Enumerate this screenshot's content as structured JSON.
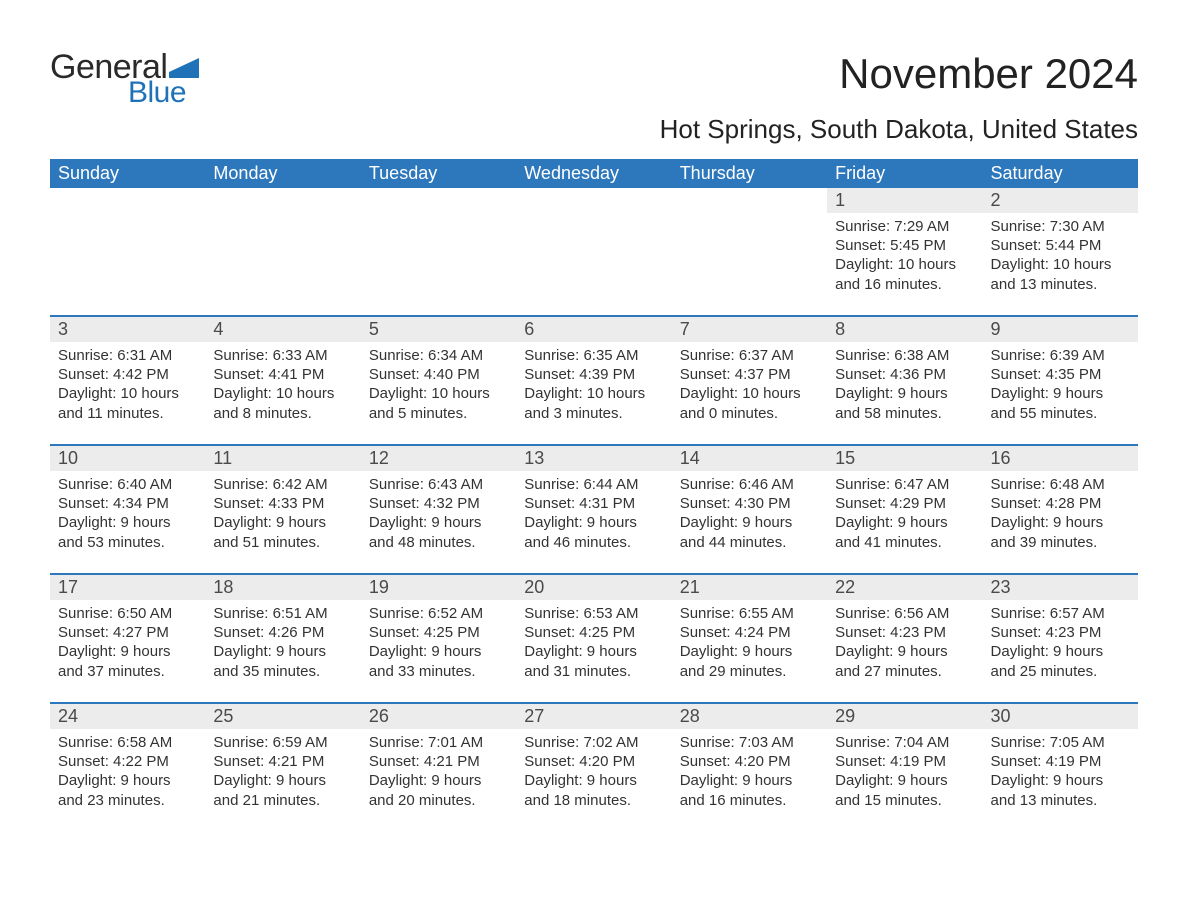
{
  "logo": {
    "text_general": "General",
    "text_blue": "Blue",
    "flag_color": "#1f72b8"
  },
  "title": "November 2024",
  "location": "Hot Springs, South Dakota, United States",
  "colors": {
    "header_bg": "#2d78bd",
    "header_text": "#ffffff",
    "daynum_bg": "#ececec",
    "daynum_text": "#4a4a4a",
    "body_text": "#333333",
    "rule": "#2d78bd",
    "page_bg": "#ffffff"
  },
  "font": {
    "family": "Arial",
    "title_size": 42,
    "location_size": 26,
    "header_size": 18,
    "daynum_size": 18,
    "body_size": 15
  },
  "calendar": {
    "type": "table",
    "columns": [
      "Sunday",
      "Monday",
      "Tuesday",
      "Wednesday",
      "Thursday",
      "Friday",
      "Saturday"
    ],
    "weeks": [
      [
        null,
        null,
        null,
        null,
        null,
        {
          "day": "1",
          "sunrise": "7:29 AM",
          "sunset": "5:45 PM",
          "daylight": "10 hours and 16 minutes."
        },
        {
          "day": "2",
          "sunrise": "7:30 AM",
          "sunset": "5:44 PM",
          "daylight": "10 hours and 13 minutes."
        }
      ],
      [
        {
          "day": "3",
          "sunrise": "6:31 AM",
          "sunset": "4:42 PM",
          "daylight": "10 hours and 11 minutes."
        },
        {
          "day": "4",
          "sunrise": "6:33 AM",
          "sunset": "4:41 PM",
          "daylight": "10 hours and 8 minutes."
        },
        {
          "day": "5",
          "sunrise": "6:34 AM",
          "sunset": "4:40 PM",
          "daylight": "10 hours and 5 minutes."
        },
        {
          "day": "6",
          "sunrise": "6:35 AM",
          "sunset": "4:39 PM",
          "daylight": "10 hours and 3 minutes."
        },
        {
          "day": "7",
          "sunrise": "6:37 AM",
          "sunset": "4:37 PM",
          "daylight": "10 hours and 0 minutes."
        },
        {
          "day": "8",
          "sunrise": "6:38 AM",
          "sunset": "4:36 PM",
          "daylight": "9 hours and 58 minutes."
        },
        {
          "day": "9",
          "sunrise": "6:39 AM",
          "sunset": "4:35 PM",
          "daylight": "9 hours and 55 minutes."
        }
      ],
      [
        {
          "day": "10",
          "sunrise": "6:40 AM",
          "sunset": "4:34 PM",
          "daylight": "9 hours and 53 minutes."
        },
        {
          "day": "11",
          "sunrise": "6:42 AM",
          "sunset": "4:33 PM",
          "daylight": "9 hours and 51 minutes."
        },
        {
          "day": "12",
          "sunrise": "6:43 AM",
          "sunset": "4:32 PM",
          "daylight": "9 hours and 48 minutes."
        },
        {
          "day": "13",
          "sunrise": "6:44 AM",
          "sunset": "4:31 PM",
          "daylight": "9 hours and 46 minutes."
        },
        {
          "day": "14",
          "sunrise": "6:46 AM",
          "sunset": "4:30 PM",
          "daylight": "9 hours and 44 minutes."
        },
        {
          "day": "15",
          "sunrise": "6:47 AM",
          "sunset": "4:29 PM",
          "daylight": "9 hours and 41 minutes."
        },
        {
          "day": "16",
          "sunrise": "6:48 AM",
          "sunset": "4:28 PM",
          "daylight": "9 hours and 39 minutes."
        }
      ],
      [
        {
          "day": "17",
          "sunrise": "6:50 AM",
          "sunset": "4:27 PM",
          "daylight": "9 hours and 37 minutes."
        },
        {
          "day": "18",
          "sunrise": "6:51 AM",
          "sunset": "4:26 PM",
          "daylight": "9 hours and 35 minutes."
        },
        {
          "day": "19",
          "sunrise": "6:52 AM",
          "sunset": "4:25 PM",
          "daylight": "9 hours and 33 minutes."
        },
        {
          "day": "20",
          "sunrise": "6:53 AM",
          "sunset": "4:25 PM",
          "daylight": "9 hours and 31 minutes."
        },
        {
          "day": "21",
          "sunrise": "6:55 AM",
          "sunset": "4:24 PM",
          "daylight": "9 hours and 29 minutes."
        },
        {
          "day": "22",
          "sunrise": "6:56 AM",
          "sunset": "4:23 PM",
          "daylight": "9 hours and 27 minutes."
        },
        {
          "day": "23",
          "sunrise": "6:57 AM",
          "sunset": "4:23 PM",
          "daylight": "9 hours and 25 minutes."
        }
      ],
      [
        {
          "day": "24",
          "sunrise": "6:58 AM",
          "sunset": "4:22 PM",
          "daylight": "9 hours and 23 minutes."
        },
        {
          "day": "25",
          "sunrise": "6:59 AM",
          "sunset": "4:21 PM",
          "daylight": "9 hours and 21 minutes."
        },
        {
          "day": "26",
          "sunrise": "7:01 AM",
          "sunset": "4:21 PM",
          "daylight": "9 hours and 20 minutes."
        },
        {
          "day": "27",
          "sunrise": "7:02 AM",
          "sunset": "4:20 PM",
          "daylight": "9 hours and 18 minutes."
        },
        {
          "day": "28",
          "sunrise": "7:03 AM",
          "sunset": "4:20 PM",
          "daylight": "9 hours and 16 minutes."
        },
        {
          "day": "29",
          "sunrise": "7:04 AM",
          "sunset": "4:19 PM",
          "daylight": "9 hours and 15 minutes."
        },
        {
          "day": "30",
          "sunrise": "7:05 AM",
          "sunset": "4:19 PM",
          "daylight": "9 hours and 13 minutes."
        }
      ]
    ],
    "labels": {
      "sunrise": "Sunrise:",
      "sunset": "Sunset:",
      "daylight": "Daylight:"
    }
  }
}
